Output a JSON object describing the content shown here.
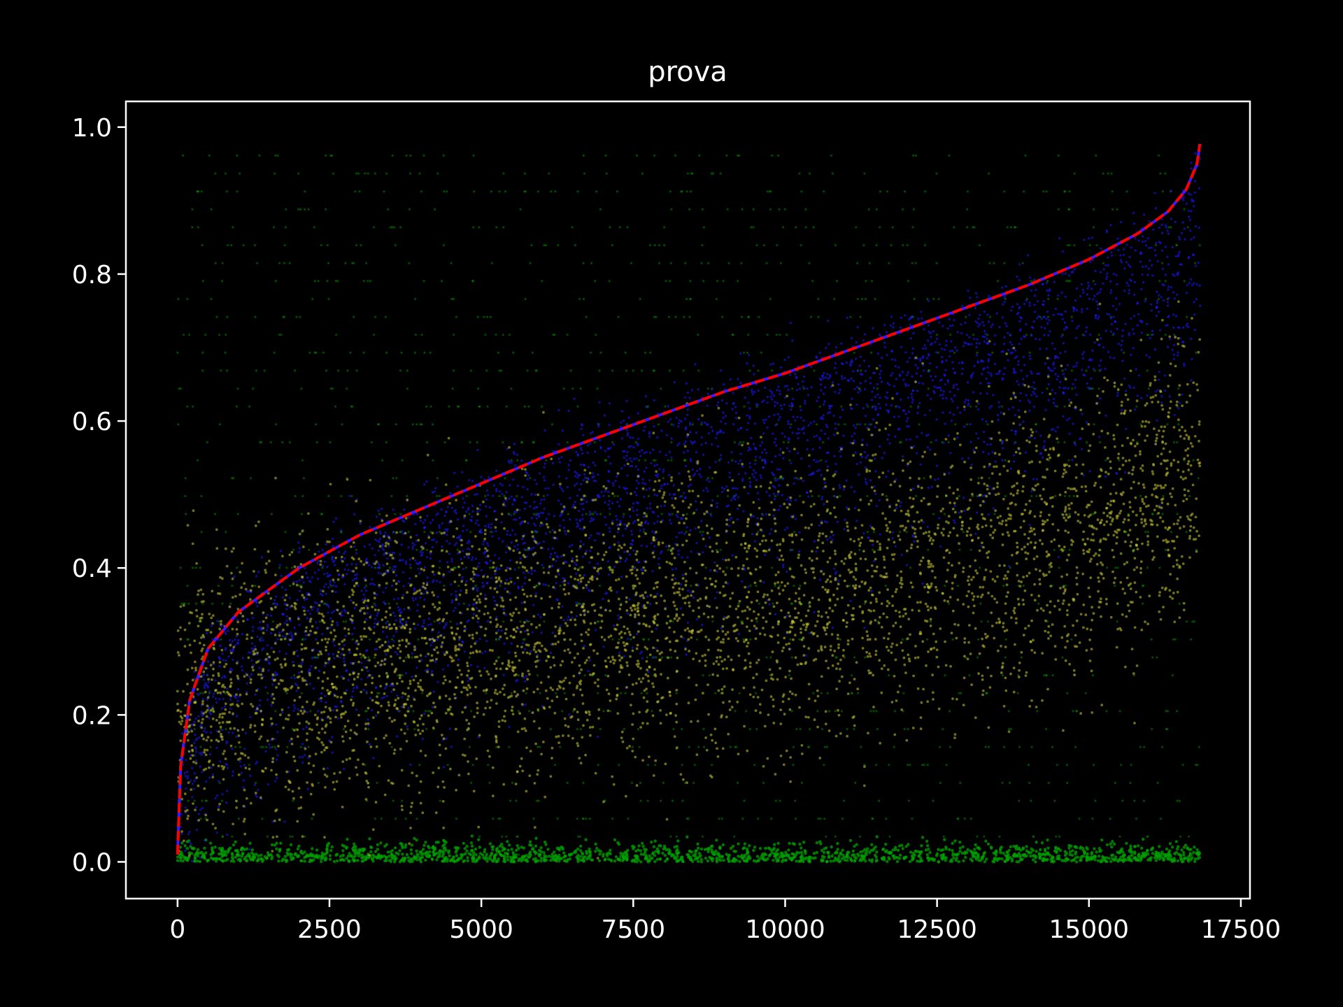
{
  "chart_data": {
    "type": "scatter",
    "title": "prova",
    "xlabel": "",
    "ylabel": "",
    "xlim": [
      -850,
      17650
    ],
    "ylim": [
      -0.05,
      1.035
    ],
    "x_ticks": [
      0,
      2500,
      5000,
      7500,
      10000,
      12500,
      15000,
      17500
    ],
    "x_tick_labels": [
      "0",
      "2500",
      "5000",
      "7500",
      "10000",
      "12500",
      "15000",
      "17500"
    ],
    "y_ticks": [
      0.0,
      0.2,
      0.4,
      0.6,
      0.8,
      1.0
    ],
    "y_tick_labels": [
      "0.0",
      "0.2",
      "0.4",
      "0.6",
      "0.8",
      "1.0"
    ],
    "n_points": 16850,
    "background": "#000000",
    "series": [
      {
        "name": "green",
        "color": "#00a000",
        "kind": "scatter",
        "description": "dense band at y=0 plus sparse horizontal striations across 0-1",
        "approx_y_range": [
          0.0,
          0.98
        ]
      },
      {
        "name": "blue",
        "color": "#1a1aff",
        "kind": "scatter",
        "description": "cloud concentrated just around/below the red curve",
        "approx_y_range": [
          0.0,
          0.97
        ]
      },
      {
        "name": "yellow",
        "color": "#c8c832",
        "kind": "scatter",
        "description": "cloud rising from ~0.22 at left to ~0.5 at right",
        "approx_center": [
          [
            0,
            0.22
          ],
          [
            5000,
            0.3
          ],
          [
            10000,
            0.36
          ],
          [
            15000,
            0.45
          ],
          [
            16800,
            0.55
          ]
        ]
      },
      {
        "name": "sorted curve",
        "color": "#ff0000",
        "kind": "line",
        "style": "dashed",
        "x": [
          0,
          50,
          200,
          500,
          1000,
          2000,
          3000,
          4000,
          5000,
          6000,
          7000,
          8000,
          9000,
          10000,
          11000,
          12000,
          13000,
          14000,
          15000,
          15800,
          16300,
          16600,
          16780,
          16830
        ],
        "y": [
          0.01,
          0.13,
          0.22,
          0.29,
          0.34,
          0.4,
          0.445,
          0.48,
          0.515,
          0.55,
          0.58,
          0.61,
          0.64,
          0.665,
          0.695,
          0.725,
          0.755,
          0.785,
          0.82,
          0.855,
          0.885,
          0.915,
          0.95,
          0.98
        ]
      }
    ]
  }
}
